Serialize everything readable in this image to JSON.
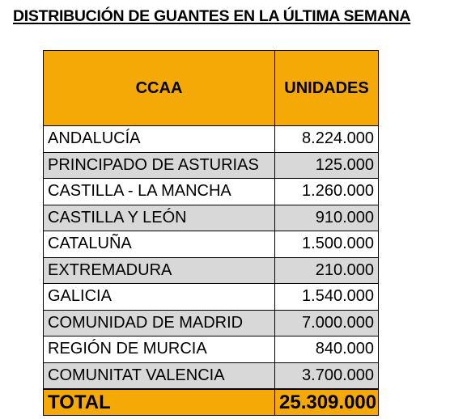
{
  "title": "DISTRIBUCIÓN DE GUANTES EN LA ÚLTIMA SEMANA",
  "colors": {
    "header_background": "#f5a906",
    "alternate_row": "#d8d8d8"
  },
  "table": {
    "headers": [
      "CCAA",
      "UNIDADES"
    ],
    "rows": [
      {
        "ccaa": "ANDALUCÍA",
        "unidades": "8.224.000"
      },
      {
        "ccaa": "PRINCIPADO DE ASTURIAS",
        "unidades": "125.000"
      },
      {
        "ccaa": "CASTILLA - LA MANCHA",
        "unidades": "1.260.000"
      },
      {
        "ccaa": "CASTILLA Y LEÓN",
        "unidades": "910.000"
      },
      {
        "ccaa": "CATALUÑA",
        "unidades": "1.500.000"
      },
      {
        "ccaa": "EXTREMADURA",
        "unidades": "210.000"
      },
      {
        "ccaa": "GALICIA",
        "unidades": "1.540.000"
      },
      {
        "ccaa": "COMUNIDAD DE MADRID",
        "unidades": "7.000.000"
      },
      {
        "ccaa": "REGIÓN DE MURCIA",
        "unidades": "840.000"
      },
      {
        "ccaa": "COMUNITAT VALENCIA",
        "unidades": "3.700.000"
      }
    ],
    "total": {
      "label": "TOTAL",
      "unidades": "25.309.000"
    }
  }
}
